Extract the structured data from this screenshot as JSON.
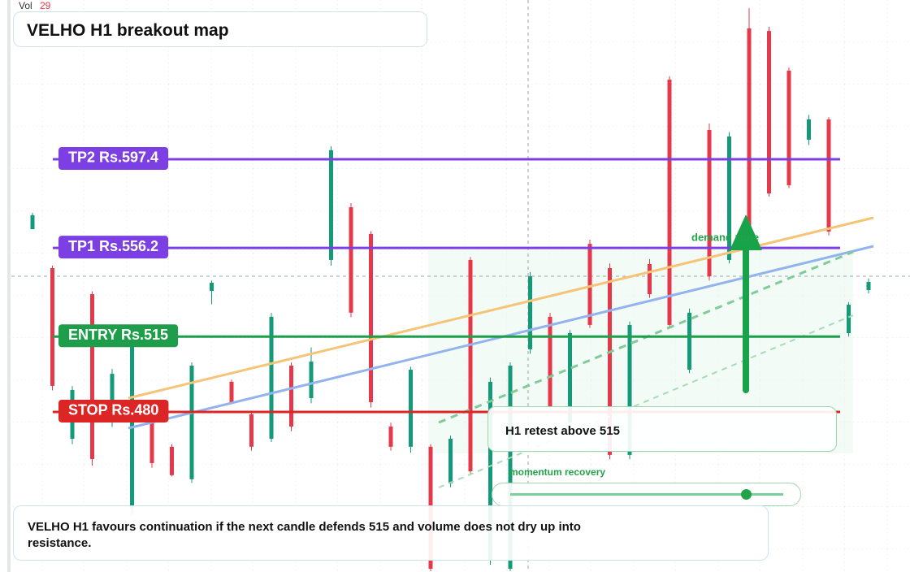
{
  "chart_data": {
    "type": "candlestick",
    "title": "VELHO H1 breakout map",
    "volume": {
      "label": "Vol",
      "value": 29
    },
    "ylim": [
      405.6,
      671.4
    ],
    "up_color": "#149a78",
    "down_color": "#e5384a",
    "open": [
      564.9,
      546.8,
      467.5,
      534.7,
      475.1,
      435.5,
      475.1,
      463.8,
      448.7,
      536.2,
      494.0,
      478.9,
      467.5,
      501.5,
      486.4,
      550.6,
      575.1,
      562.7,
      473.2,
      463.8,
      463.8,
      446.8,
      550.6,
      410.9,
      407.1,
      509.1,
      524.2,
      475.1,
      558.1,
      546.8,
      460.0,
      548.7,
      634.4,
      499.6,
      611.0,
      550.6,
      658.2,
      657.0,
      638.6,
      606.5,
      615.9,
      516.6,
      536.6
    ],
    "high": [
      572.5,
      548,
      492,
      536,
      500,
      513,
      477,
      465,
      503,
      541,
      495,
      480,
      526,
      503,
      510,
      603.4,
      577,
      564,
      475,
      501,
      465,
      469,
      552,
      496,
      503,
      545,
      526,
      518,
      560,
      549,
      522,
      551,
      636,
      528,
      614,
      610,
      667.6,
      659,
      640,
      618,
      617,
      531,
      542
    ],
    "low": [
      564.9,
      490,
      465,
      455,
      473,
      432,
      454,
      450,
      447,
      530,
      484,
      462,
      466,
      471,
      484,
      548,
      524,
      482,
      462,
      461,
      406,
      445,
      451,
      409,
      406,
      507,
      481,
      473,
      519,
      458,
      458,
      533,
      519,
      498,
      541,
      549,
      556,
      580,
      584,
      604,
      562,
      515,
      535
    ],
    "close": [
      571.4,
      492.1,
      490.2,
      458.1,
      497.7,
      511.0,
      456.2,
      450.6,
      501.5,
      540.0,
      484.5,
      463.8,
      524.2,
      473.2,
      503.4,
      601.6,
      526.1,
      484.5,
      463.8,
      499.6,
      407.1,
      467.5,
      452.4,
      494.0,
      501.5,
      543.0,
      482.6,
      516.6,
      520.4,
      460.0,
      520.4,
      534.7,
      520.4,
      526.1,
      543.0,
      608.0,
      558.1,
      581.5,
      585.3,
      615.9,
      563.8,
      529.8,
      540.4
    ],
    "levels": [
      {
        "label": "TP2 Rs.597.4",
        "value": 597.4,
        "color": "#7b3fe4"
      },
      {
        "label": "TP1 Rs.556.2",
        "value": 556.2,
        "color": "#7b3fe4"
      },
      {
        "label": "ENTRY Rs.515",
        "value": 515,
        "color": "#1e9e4a"
      },
      {
        "label": "STOP Rs.480",
        "value": 480,
        "color": "#dc2626"
      }
    ],
    "annotations": {
      "zone": "demand zone",
      "retest": "H1 retest above 515",
      "momentum": "momentum recovery",
      "note": "VELHO H1 favours continuation if the next candle defends 515 and volume does not dry up into resistance."
    }
  }
}
